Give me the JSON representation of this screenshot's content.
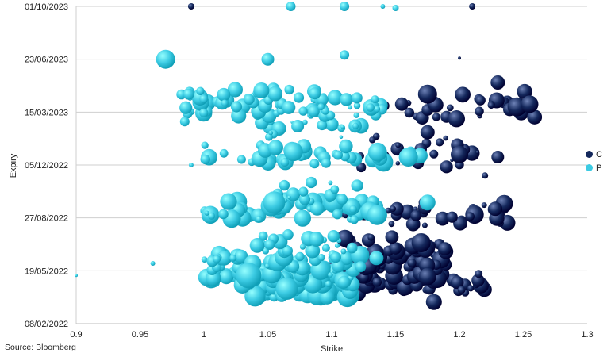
{
  "chart_data": {
    "type": "scatter",
    "subtype": "bubble",
    "title": "",
    "xlabel": "Strike",
    "ylabel": "Expiry",
    "xlim": [
      0.9,
      1.3
    ],
    "x_ticks": [
      "0.9",
      "0.95",
      "1",
      "1.05",
      "1.1",
      "1.15",
      "1.2",
      "1.25",
      "1.3"
    ],
    "y_tick_labels": [
      "08/02/2022",
      "19/05/2022",
      "27/08/2022",
      "05/12/2022",
      "15/03/2023",
      "23/06/2023",
      "01/10/2023"
    ],
    "ylim": [
      "08/02/2022",
      "01/10/2023"
    ],
    "grid": "horizontal",
    "legend_position": "right",
    "source": "Source: Bloomberg",
    "series": [
      {
        "name": "C",
        "color": "#14285c",
        "clusters": [
          {
            "x_range": [
              1.1,
              1.22
            ],
            "expiry": "2022-04-20",
            "count": 30,
            "size_range": [
              4,
              12
            ]
          },
          {
            "x_range": [
              1.1,
              1.2
            ],
            "expiry": "2022-05-15",
            "count": 32,
            "size_range": [
              4,
              12
            ]
          },
          {
            "x_range": [
              1.1,
              1.19
            ],
            "expiry": "2022-06-10",
            "count": 28,
            "size_range": [
              4,
              12
            ]
          },
          {
            "x_range": [
              1.11,
              1.19
            ],
            "expiry": "2022-07-05",
            "count": 22,
            "size_range": [
              3,
              11
            ]
          },
          {
            "x_range": [
              1.11,
              1.24
            ],
            "expiry": "2022-08-28",
            "count": 26,
            "size_range": [
              3,
              12
            ]
          },
          {
            "x_range": [
              1.11,
              1.24
            ],
            "expiry": "2022-09-12",
            "count": 14,
            "size_range": [
              3,
              10
            ]
          },
          {
            "x_range": [
              1.12,
              1.22
            ],
            "expiry": "2022-12-17",
            "count": 16,
            "size_range": [
              2,
              10
            ]
          },
          {
            "x_range": [
              1.13,
              1.2
            ],
            "expiry": "2023-01-15",
            "count": 10,
            "size_range": [
              2,
              9
            ]
          },
          {
            "x_range": [
              1.14,
              1.26
            ],
            "expiry": "2023-03-20",
            "count": 20,
            "size_range": [
              2,
              11
            ]
          },
          {
            "x_range": [
              1.14,
              1.26
            ],
            "expiry": "2023-04-05",
            "count": 10,
            "size_range": [
              3,
              10
            ]
          }
        ],
        "points": [
          {
            "x": 1.18,
            "expiry": "2022-03-21",
            "size": 10
          },
          {
            "x": 1.175,
            "expiry": "2022-05-08",
            "size": 11
          },
          {
            "x": 1.17,
            "expiry": "2022-07-11",
            "size": 12
          },
          {
            "x": 1.215,
            "expiry": "2022-05-13",
            "size": 5
          },
          {
            "x": 1.235,
            "expiry": "2022-09-23",
            "size": 11
          },
          {
            "x": 1.228,
            "expiry": "2022-09-13",
            "size": 9
          },
          {
            "x": 1.22,
            "expiry": "2022-11-15",
            "size": 4
          },
          {
            "x": 1.23,
            "expiry": "2022-12-20",
            "size": 8
          },
          {
            "x": 1.2,
            "expiry": "2022-12-25",
            "size": 11
          },
          {
            "x": 1.175,
            "expiry": "2023-02-05",
            "size": 9
          },
          {
            "x": 1.23,
            "expiry": "2023-05-10",
            "size": 9
          },
          {
            "x": 1.245,
            "expiry": "2023-03-25",
            "size": 12
          },
          {
            "x": 1.255,
            "expiry": "2023-03-30",
            "size": 11
          },
          {
            "x": 1.175,
            "expiry": "2023-04-18",
            "size": 12
          },
          {
            "x": 1.21,
            "expiry": "2023-10-01",
            "size": 4
          },
          {
            "x": 0.99,
            "expiry": "2023-10-01",
            "size": 4
          },
          {
            "x": 1.2,
            "expiry": "2023-06-25",
            "size": 2
          }
        ]
      },
      {
        "name": "P",
        "color": "#3ccbe3",
        "clusters": [
          {
            "x_range": [
              1.03,
              1.12
            ],
            "expiry": "2022-04-12",
            "count": 60,
            "size_range": [
              5,
              14
            ]
          },
          {
            "x_range": [
              1.0,
              1.12
            ],
            "expiry": "2022-05-10",
            "count": 60,
            "size_range": [
              3,
              13
            ]
          },
          {
            "x_range": [
              1.0,
              1.13
            ],
            "expiry": "2022-06-10",
            "count": 45,
            "size_range": [
              3,
              12
            ]
          },
          {
            "x_range": [
              1.04,
              1.12
            ],
            "expiry": "2022-07-10",
            "count": 22,
            "size_range": [
              3,
              10
            ]
          },
          {
            "x_range": [
              1.0,
              1.14
            ],
            "expiry": "2022-09-10",
            "count": 50,
            "size_range": [
              3,
              13
            ]
          },
          {
            "x_range": [
              1.05,
              1.12
            ],
            "expiry": "2022-10-15",
            "count": 18,
            "size_range": [
              2,
              9
            ]
          },
          {
            "x_range": [
              1.0,
              1.17
            ],
            "expiry": "2022-12-25",
            "count": 40,
            "size_range": [
              3,
              12
            ]
          },
          {
            "x_range": [
              1.04,
              1.13
            ],
            "expiry": "2023-02-10",
            "count": 18,
            "size_range": [
              2,
              10
            ]
          },
          {
            "x_range": [
              0.98,
              1.14
            ],
            "expiry": "2023-03-25",
            "count": 50,
            "size_range": [
              3,
              11
            ]
          },
          {
            "x_range": [
              0.98,
              1.1
            ],
            "expiry": "2023-04-10",
            "count": 30,
            "size_range": [
              3,
              10
            ]
          }
        ],
        "points": [
          {
            "x": 0.97,
            "expiry": "2023-06-23",
            "size": 12
          },
          {
            "x": 1.05,
            "expiry": "2023-06-23",
            "size": 8
          },
          {
            "x": 1.11,
            "expiry": "2023-07-01",
            "size": 6
          },
          {
            "x": 1.068,
            "expiry": "2023-10-01",
            "size": 6
          },
          {
            "x": 1.11,
            "expiry": "2023-10-01",
            "size": 6
          },
          {
            "x": 1.15,
            "expiry": "2023-09-28",
            "size": 4
          },
          {
            "x": 1.14,
            "expiry": "2023-10-01",
            "size": 3
          },
          {
            "x": 0.96,
            "expiry": "2022-06-02",
            "size": 3
          },
          {
            "x": 0.9,
            "expiry": "2022-05-10",
            "size": 2
          },
          {
            "x": 1.01,
            "expiry": "2022-06-10",
            "size": 5
          },
          {
            "x": 0.99,
            "expiry": "2022-12-05",
            "size": 3
          },
          {
            "x": 0.985,
            "expiry": "2023-02-25",
            "size": 6
          },
          {
            "x": 0.988,
            "expiry": "2023-04-18",
            "size": 7
          },
          {
            "x": 1.035,
            "expiry": "2022-05-10",
            "size": 16
          },
          {
            "x": 1.065,
            "expiry": "2022-04-15",
            "size": 14
          },
          {
            "x": 1.055,
            "expiry": "2022-09-25",
            "size": 14
          },
          {
            "x": 1.07,
            "expiry": "2022-12-30",
            "size": 12
          },
          {
            "x": 1.16,
            "expiry": "2022-12-20",
            "size": 12
          },
          {
            "x": 1.175,
            "expiry": "2022-09-25",
            "size": 10
          },
          {
            "x": 1.045,
            "expiry": "2023-04-25",
            "size": 10
          },
          {
            "x": 1.135,
            "expiry": "2022-06-12",
            "size": 9
          }
        ]
      }
    ]
  }
}
